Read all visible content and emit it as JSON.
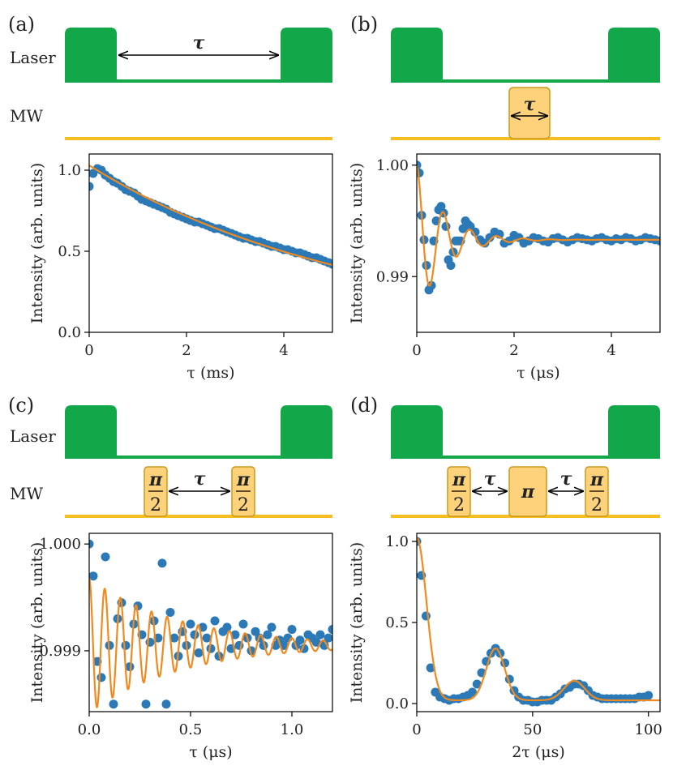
{
  "colors": {
    "laser": "#12a84a",
    "mw_line": "#f5bd1f",
    "mw_pulse_fill": "#fdd27a",
    "mw_pulse_stroke": "#cc9a1a",
    "data": "#2b7ab7",
    "fit": "#f08a1e"
  },
  "labels": {
    "laser": "Laser",
    "mw": "MW",
    "tau": "τ",
    "pi": "π",
    "pi_over_num": "π",
    "pi_over_den": "2"
  },
  "panels": [
    {
      "id": "a",
      "label": "(a)"
    },
    {
      "id": "b",
      "label": "(b)"
    },
    {
      "id": "c",
      "label": "(c)"
    },
    {
      "id": "d",
      "label": "(d)"
    }
  ],
  "chart_data": [
    {
      "panel": "a",
      "type": "scatter",
      "title": "",
      "xlabel": "τ (ms)",
      "ylabel": "Intensity (arb. units)",
      "xlim": [
        0,
        5
      ],
      "ylim": [
        0,
        1.1
      ],
      "xticks": [
        0,
        2,
        4
      ],
      "xtick_labels": [
        "0",
        "2",
        "4"
      ],
      "yticks": [
        0,
        0.5,
        1.0
      ],
      "ytick_labels": [
        "0.0",
        "0.5",
        "1.0"
      ],
      "model": {
        "kind": "exp",
        "A": 1.03,
        "T": 5.5,
        "offset": 0
      },
      "x": [
        0.0,
        0.08,
        0.17,
        0.25,
        0.33,
        0.42,
        0.5,
        0.58,
        0.67,
        0.75,
        0.83,
        0.92,
        1.0,
        1.08,
        1.17,
        1.25,
        1.33,
        1.42,
        1.5,
        1.58,
        1.67,
        1.75,
        1.83,
        1.92,
        2.0,
        2.08,
        2.17,
        2.25,
        2.33,
        2.42,
        2.5,
        2.58,
        2.67,
        2.75,
        2.83,
        2.92,
        3.0,
        3.08,
        3.17,
        3.25,
        3.33,
        3.42,
        3.5,
        3.58,
        3.67,
        3.75,
        3.83,
        3.92,
        4.0,
        4.08,
        4.17,
        4.25,
        4.33,
        4.42,
        4.5,
        4.58,
        4.67,
        4.75,
        4.83,
        4.92,
        5.0
      ],
      "y": [
        0.9,
        0.98,
        1.01,
        1.0,
        0.97,
        0.95,
        0.93,
        0.92,
        0.9,
        0.88,
        0.87,
        0.86,
        0.84,
        0.82,
        0.81,
        0.8,
        0.79,
        0.78,
        0.77,
        0.76,
        0.74,
        0.73,
        0.72,
        0.71,
        0.7,
        0.69,
        0.68,
        0.68,
        0.67,
        0.66,
        0.65,
        0.64,
        0.64,
        0.63,
        0.62,
        0.61,
        0.6,
        0.59,
        0.58,
        0.58,
        0.57,
        0.56,
        0.56,
        0.55,
        0.54,
        0.53,
        0.53,
        0.52,
        0.51,
        0.51,
        0.5,
        0.49,
        0.49,
        0.48,
        0.47,
        0.46,
        0.46,
        0.45,
        0.44,
        0.43,
        0.42
      ]
    },
    {
      "panel": "b",
      "type": "scatter",
      "title": "",
      "xlabel": "τ (μs)",
      "ylabel": "Intensity (arb. units)",
      "xlim": [
        0,
        5
      ],
      "ylim": [
        0.985,
        1.001
      ],
      "xticks": [
        0,
        2,
        4
      ],
      "xtick_labels": [
        "0",
        "2",
        "4"
      ],
      "yticks": [
        0.99,
        1.0
      ],
      "ytick_labels": [
        "0.99",
        "1.00"
      ],
      "model": {
        "kind": "damped_cos",
        "offset": 0.9933,
        "A": 0.0067,
        "tau": 0.55,
        "freq": 1.82
      },
      "x": [
        0.0,
        0.05,
        0.1,
        0.15,
        0.2,
        0.25,
        0.3,
        0.35,
        0.4,
        0.45,
        0.5,
        0.55,
        0.6,
        0.65,
        0.7,
        0.75,
        0.8,
        0.85,
        0.9,
        0.95,
        1.0,
        1.05,
        1.1,
        1.2,
        1.3,
        1.4,
        1.5,
        1.6,
        1.7,
        1.8,
        1.9,
        2.0,
        2.1,
        2.2,
        2.3,
        2.4,
        2.5,
        2.6,
        2.7,
        2.8,
        2.9,
        3.0,
        3.1,
        3.2,
        3.3,
        3.4,
        3.5,
        3.6,
        3.7,
        3.8,
        3.9,
        4.0,
        4.1,
        4.2,
        4.3,
        4.4,
        4.5,
        4.6,
        4.7,
        4.8,
        4.9,
        5.0
      ],
      "y": [
        1.0,
        0.9993,
        0.9955,
        0.9933,
        0.991,
        0.9888,
        0.9892,
        0.9932,
        0.995,
        0.996,
        0.9963,
        0.9957,
        0.9945,
        0.9915,
        0.991,
        0.9922,
        0.9932,
        0.9932,
        0.9932,
        0.9943,
        0.995,
        0.9947,
        0.9945,
        0.994,
        0.9933,
        0.993,
        0.9935,
        0.994,
        0.9938,
        0.993,
        0.9932,
        0.9937,
        0.9935,
        0.993,
        0.9932,
        0.9935,
        0.9934,
        0.9932,
        0.9931,
        0.9934,
        0.9935,
        0.9933,
        0.9931,
        0.9933,
        0.9935,
        0.9934,
        0.9933,
        0.9932,
        0.9934,
        0.9935,
        0.9933,
        0.9932,
        0.9934,
        0.9933,
        0.9935,
        0.9934,
        0.9932,
        0.9933,
        0.9935,
        0.9934,
        0.9933,
        0.9932
      ]
    },
    {
      "panel": "c",
      "type": "scatter",
      "title": "",
      "xlabel": "τ (μs)",
      "ylabel": "Intensity (arb. units)",
      "xlim": [
        0,
        1.2
      ],
      "ylim": [
        0.99843,
        1.0001
      ],
      "xticks": [
        0,
        0.5,
        1.0
      ],
      "xtick_labels": [
        "0.0",
        "0.5",
        "1.0"
      ],
      "yticks": [
        0.999,
        1.0
      ],
      "ytick_labels": [
        "0.999",
        "1.000"
      ],
      "model": {
        "kind": "damped_cos",
        "offset": 0.99905,
        "A": 0.00063,
        "tau": 0.45,
        "freq": 13.0
      },
      "x": [
        0.0,
        0.02,
        0.04,
        0.06,
        0.08,
        0.1,
        0.12,
        0.14,
        0.16,
        0.18,
        0.2,
        0.22,
        0.24,
        0.26,
        0.28,
        0.3,
        0.32,
        0.34,
        0.36,
        0.38,
        0.4,
        0.42,
        0.44,
        0.46,
        0.48,
        0.5,
        0.52,
        0.54,
        0.56,
        0.58,
        0.6,
        0.62,
        0.64,
        0.66,
        0.68,
        0.7,
        0.72,
        0.74,
        0.76,
        0.78,
        0.8,
        0.82,
        0.84,
        0.86,
        0.88,
        0.9,
        0.92,
        0.94,
        0.96,
        0.98,
        1.0,
        1.02,
        1.04,
        1.06,
        1.08,
        1.1,
        1.12,
        1.14,
        1.16,
        1.18,
        1.2
      ],
      "y": [
        1.0,
        0.9997,
        0.9989,
        0.99875,
        0.99988,
        0.99905,
        0.9985,
        0.9993,
        0.99945,
        0.99905,
        0.99885,
        0.99925,
        0.99942,
        0.99915,
        0.9985,
        0.99908,
        0.99928,
        0.99912,
        0.99982,
        0.9985,
        0.99936,
        0.99912,
        0.99895,
        0.99918,
        0.99905,
        0.99925,
        0.99915,
        0.99898,
        0.99922,
        0.99912,
        0.99902,
        0.99928,
        0.99895,
        0.99918,
        0.99922,
        0.99902,
        0.99915,
        0.99905,
        0.99925,
        0.99912,
        0.999,
        0.99918,
        0.99912,
        0.99905,
        0.99915,
        0.99922,
        0.99905,
        0.9991,
        0.99905,
        0.99912,
        0.9992,
        0.99905,
        0.9991,
        0.99902,
        0.99915,
        0.99912,
        0.99908,
        0.99915,
        0.99905,
        0.99912,
        0.9992
      ]
    },
    {
      "panel": "d",
      "type": "scatter",
      "title": "",
      "xlabel": "2τ (μs)",
      "ylabel": "Intensity (arb. units)",
      "xlim": [
        0,
        105
      ],
      "ylim": [
        -0.05,
        1.05
      ],
      "xticks": [
        0,
        50,
        100
      ],
      "xtick_labels": [
        "0",
        "50",
        "100"
      ],
      "yticks": [
        0,
        0.5,
        1.0
      ],
      "ytick_labels": [
        "0.0",
        "0.5",
        "1.0"
      ],
      "model": {
        "kind": "revivals",
        "baseline": 0.02,
        "peaks": [
          [
            0,
            1.0,
            4.2
          ],
          [
            34,
            0.32,
            4.0
          ],
          [
            68,
            0.12,
            4.5
          ]
        ]
      },
      "x": [
        0,
        2,
        4,
        6,
        8,
        10,
        12,
        14,
        16,
        18,
        20,
        22,
        24,
        26,
        28,
        30,
        32,
        34,
        36,
        38,
        40,
        42,
        44,
        46,
        48,
        50,
        52,
        54,
        56,
        58,
        60,
        62,
        64,
        66,
        68,
        70,
        72,
        74,
        76,
        78,
        80,
        82,
        84,
        86,
        88,
        90,
        92,
        94,
        96,
        98,
        100
      ],
      "y": [
        1.0,
        0.79,
        0.54,
        0.22,
        0.07,
        0.04,
        0.03,
        0.02,
        0.03,
        0.03,
        0.04,
        0.05,
        0.07,
        0.12,
        0.19,
        0.26,
        0.31,
        0.34,
        0.31,
        0.25,
        0.15,
        0.08,
        0.04,
        0.02,
        0.02,
        0.01,
        0.01,
        0.02,
        0.02,
        0.02,
        0.04,
        0.06,
        0.09,
        0.1,
        0.12,
        0.12,
        0.11,
        0.08,
        0.05,
        0.04,
        0.03,
        0.03,
        0.03,
        0.03,
        0.03,
        0.03,
        0.03,
        0.03,
        0.04,
        0.04,
        0.05
      ]
    }
  ]
}
